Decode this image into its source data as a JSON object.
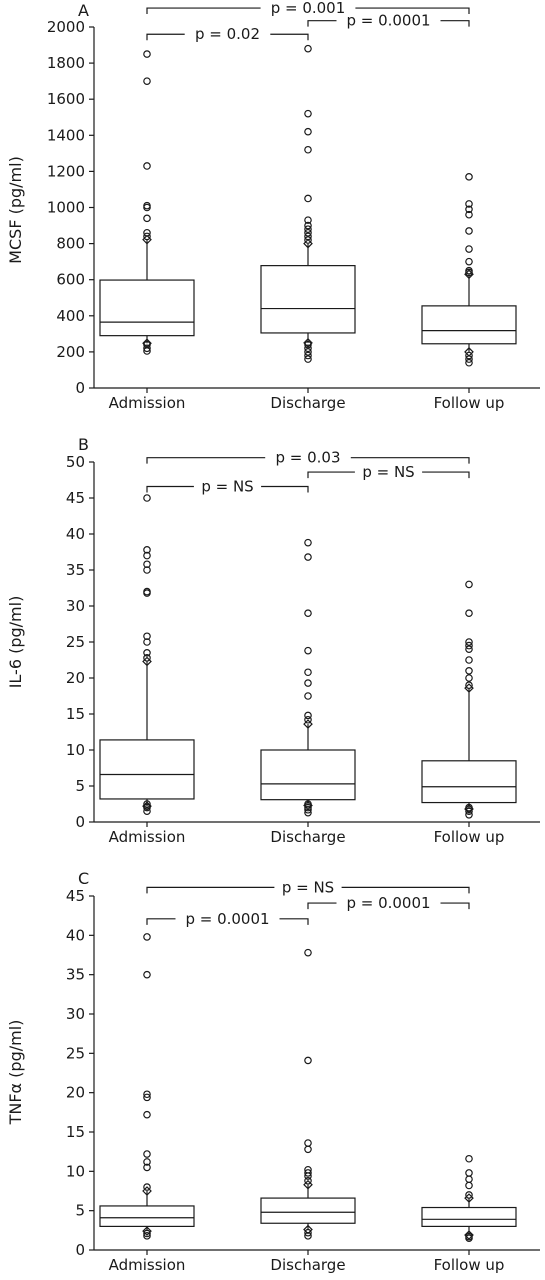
{
  "chart_data": [
    {
      "type": "box",
      "panel_label": "A",
      "ylabel": "MCSF (pg/ml)",
      "ylim": [
        0,
        2000
      ],
      "yticks": [
        0,
        200,
        400,
        600,
        800,
        1000,
        1200,
        1400,
        1600,
        1800,
        2000
      ],
      "categories": [
        "Admission",
        "Discharge",
        "Follow up"
      ],
      "boxes": [
        {
          "q1": 290,
          "median": 365,
          "q3": 598,
          "whisker_low": 248,
          "whisker_high": 822,
          "outliers": [
            205,
            220,
            240,
            840,
            860,
            940,
            1000,
            1010,
            1230,
            1700,
            1850
          ]
        },
        {
          "q1": 305,
          "median": 440,
          "q3": 678,
          "whisker_low": 250,
          "whisker_high": 800,
          "outliers": [
            160,
            180,
            200,
            220,
            240,
            820,
            840,
            860,
            880,
            900,
            930,
            1050,
            1320,
            1420,
            1520,
            1880
          ]
        },
        {
          "q1": 245,
          "median": 318,
          "q3": 455,
          "whisker_low": 200,
          "whisker_high": 630,
          "outliers": [
            140,
            160,
            180,
            640,
            650,
            700,
            770,
            870,
            960,
            990,
            1020,
            1170
          ]
        }
      ],
      "comparisons": [
        {
          "from": "Admission",
          "to": "Follow up",
          "label": "p = 0.001",
          "value": 2105
        },
        {
          "from": "Admission",
          "to": "Discharge",
          "label": "p = 0.02",
          "value": 1960
        },
        {
          "from": "Discharge",
          "to": "Follow up",
          "label": "p = 0.0001",
          "value": 2035
        }
      ]
    },
    {
      "type": "box",
      "panel_label": "B",
      "ylabel": "IL-6 (pg/ml)",
      "ylim": [
        0,
        50
      ],
      "yticks": [
        0,
        5,
        10,
        15,
        20,
        25,
        30,
        35,
        40,
        45,
        50
      ],
      "categories": [
        "Admission",
        "Discharge",
        "Follow up"
      ],
      "boxes": [
        {
          "q1": 3.2,
          "median": 6.6,
          "q3": 11.4,
          "whisker_low": 2.2,
          "whisker_high": 22.3,
          "outliers": [
            1.5,
            2.0,
            2.5,
            22.8,
            23.5,
            25.0,
            25.8,
            31.8,
            32.0,
            35.0,
            35.8,
            37.0,
            37.8,
            45.0
          ]
        },
        {
          "q1": 3.1,
          "median": 5.3,
          "q3": 10.0,
          "whisker_low": 2.3,
          "whisker_high": 13.6,
          "outliers": [
            1.3,
            1.7,
            2.0,
            2.5,
            14.2,
            14.8,
            17.5,
            19.3,
            20.8,
            23.8,
            29.0,
            36.8,
            38.8
          ]
        },
        {
          "q1": 2.7,
          "median": 4.9,
          "q3": 8.5,
          "whisker_low": 1.8,
          "whisker_high": 18.6,
          "outliers": [
            1.0,
            1.5,
            2.0,
            19.0,
            20.0,
            21.0,
            22.5,
            24.0,
            24.5,
            25.0,
            29.0,
            33.0
          ]
        }
      ],
      "comparisons": [
        {
          "from": "Admission",
          "to": "Follow up",
          "label": "p = 0.03",
          "value": 50.6
        },
        {
          "from": "Admission",
          "to": "Discharge",
          "label": "p = NS",
          "value": 46.6
        },
        {
          "from": "Discharge",
          "to": "Follow up",
          "label": "p = NS",
          "value": 48.6
        }
      ]
    },
    {
      "type": "box",
      "panel_label": "C",
      "ylabel": "TNFα (pg/ml)",
      "ylim": [
        0,
        45
      ],
      "yticks": [
        0,
        5,
        10,
        15,
        20,
        25,
        30,
        35,
        40,
        45
      ],
      "categories": [
        "Admission",
        "Discharge",
        "Follow up"
      ],
      "boxes": [
        {
          "q1": 3.0,
          "median": 4.1,
          "q3": 5.6,
          "whisker_low": 2.4,
          "whisker_high": 7.5,
          "outliers": [
            1.8,
            2.1,
            8.0,
            10.5,
            11.2,
            12.2,
            17.2,
            19.4,
            19.8,
            35.0,
            39.8
          ]
        },
        {
          "q1": 3.4,
          "median": 4.8,
          "q3": 6.6,
          "whisker_low": 2.6,
          "whisker_high": 8.3,
          "outliers": [
            1.8,
            2.2,
            8.8,
            9.4,
            9.8,
            10.2,
            12.8,
            13.6,
            24.1,
            37.8
          ]
        },
        {
          "q1": 3.0,
          "median": 3.9,
          "q3": 5.4,
          "whisker_low": 1.9,
          "whisker_high": 6.6,
          "outliers": [
            1.5,
            1.7,
            7.0,
            8.2,
            9.0,
            9.8,
            11.6
          ]
        }
      ],
      "comparisons": [
        {
          "from": "Admission",
          "to": "Follow up",
          "label": "p = NS",
          "value": 46.1
        },
        {
          "from": "Admission",
          "to": "Discharge",
          "label": "p = 0.0001",
          "value": 42.1
        },
        {
          "from": "Discharge",
          "to": "Follow up",
          "label": "p = 0.0001",
          "value": 44.1
        }
      ]
    }
  ]
}
